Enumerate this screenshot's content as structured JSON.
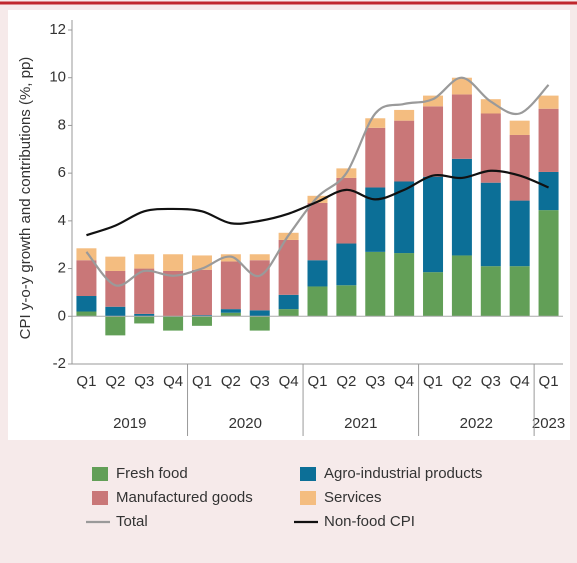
{
  "chart_data": {
    "type": "stacked_bar_line",
    "y_label": "CPI y-o-y growth and contributions (%, pp)",
    "categories": [
      "Q1",
      "Q2",
      "Q3",
      "Q4",
      "Q1",
      "Q2",
      "Q3",
      "Q4",
      "Q1",
      "Q2",
      "Q3",
      "Q4",
      "Q1",
      "Q2",
      "Q3",
      "Q4",
      "Q1"
    ],
    "x_groups": [
      "2019",
      "2020",
      "2021",
      "2022",
      "2023"
    ],
    "ylim": [
      -2,
      12
    ],
    "yticks": [
      -2,
      0,
      2,
      4,
      6,
      8,
      10,
      12
    ],
    "series": [
      {
        "name": "Fresh food",
        "kind": "bar",
        "color": "#629f57",
        "values": [
          0.2,
          -0.8,
          -0.3,
          -0.6,
          -0.4,
          0.15,
          -0.6,
          0.3,
          1.25,
          1.3,
          2.7,
          2.65,
          1.85,
          2.55,
          2.1,
          2.1,
          4.45
        ]
      },
      {
        "name": "Agro-industrial products",
        "kind": "bar",
        "color": "#0c6f97",
        "values": [
          0.65,
          0.4,
          0.1,
          0.0,
          0.05,
          0.15,
          0.25,
          0.6,
          1.1,
          1.75,
          2.7,
          3.0,
          4.0,
          4.05,
          3.5,
          2.75,
          1.6
        ]
      },
      {
        "name": "Manufactured goods",
        "kind": "bar",
        "color": "#c97778",
        "values": [
          1.5,
          1.5,
          1.9,
          1.9,
          1.9,
          2.0,
          2.1,
          2.3,
          2.4,
          2.75,
          2.5,
          2.55,
          2.95,
          2.7,
          2.9,
          2.75,
          2.65
        ]
      },
      {
        "name": "Services",
        "kind": "bar",
        "color": "#f4bd80",
        "values": [
          0.5,
          0.6,
          0.6,
          0.7,
          0.6,
          0.3,
          0.25,
          0.3,
          0.3,
          0.4,
          0.4,
          0.45,
          0.45,
          0.7,
          0.6,
          0.6,
          0.55
        ]
      },
      {
        "name": "Total",
        "kind": "line",
        "color": "#9a9a9a",
        "values": [
          2.7,
          1.3,
          1.9,
          1.7,
          2.0,
          2.5,
          1.7,
          3.4,
          5.0,
          6.0,
          8.5,
          8.9,
          9.1,
          10.0,
          9.0,
          8.5,
          9.7
        ]
      },
      {
        "name": "Non-food CPI",
        "kind": "line",
        "color": "#111111",
        "values": [
          3.4,
          3.8,
          4.4,
          4.5,
          4.4,
          3.9,
          4.0,
          4.3,
          4.8,
          5.3,
          4.9,
          5.3,
          5.9,
          5.8,
          6.1,
          5.9,
          5.4
        ]
      }
    ]
  }
}
